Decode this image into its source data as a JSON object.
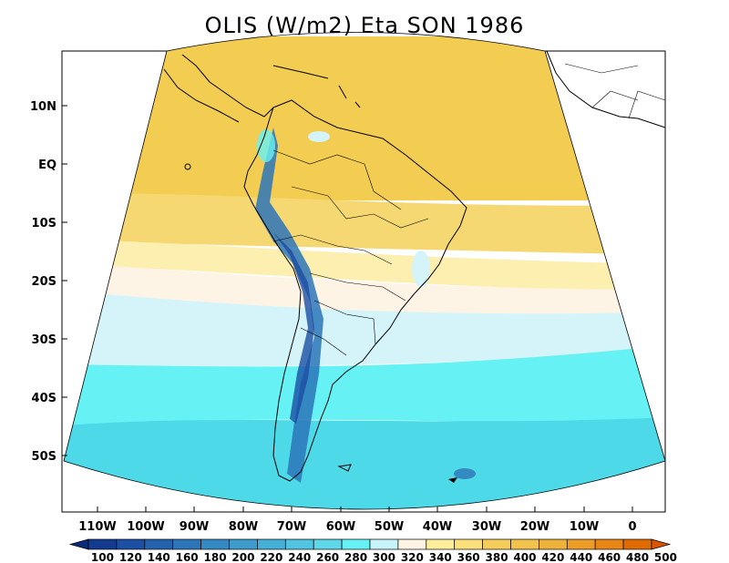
{
  "title": "OLIS (W/m2) Eta SON 1986",
  "lat_ticks": [
    "10N",
    "EQ",
    "10S",
    "20S",
    "30S",
    "40S",
    "50S"
  ],
  "lon_ticks": [
    "110W",
    "100W",
    "90W",
    "80W",
    "70W",
    "60W",
    "50W",
    "40W",
    "30W",
    "20W",
    "10W",
    "0"
  ],
  "colorbar": {
    "levels": [
      "100",
      "120",
      "140",
      "160",
      "180",
      "200",
      "220",
      "240",
      "260",
      "280",
      "300",
      "320",
      "340",
      "360",
      "380",
      "400",
      "420",
      "440",
      "460",
      "480",
      "500"
    ],
    "colors": [
      "#0a2a7a",
      "#133a8e",
      "#1c4ea3",
      "#2462ad",
      "#2c75b8",
      "#3589c3",
      "#3d9ccc",
      "#45b0d6",
      "#50c4e0",
      "#5ed8e8",
      "#66f2f4",
      "#c6f4fa",
      "#fef4e3",
      "#fdee9b",
      "#fbe07c",
      "#f5cd5a",
      "#f1c24c",
      "#eeb23a",
      "#eb9d26",
      "#e78614",
      "#e06a02",
      "#d95300"
    ]
  },
  "bands": [
    {
      "color": "#f3cd52"
    },
    {
      "color": "#f5d872"
    },
    {
      "color": "#fdefb0"
    },
    {
      "color": "#fdf4e6"
    },
    {
      "color": "#d4f4fa"
    },
    {
      "color": "#66f2f4"
    },
    {
      "color": "#4dd9e7"
    }
  ]
}
